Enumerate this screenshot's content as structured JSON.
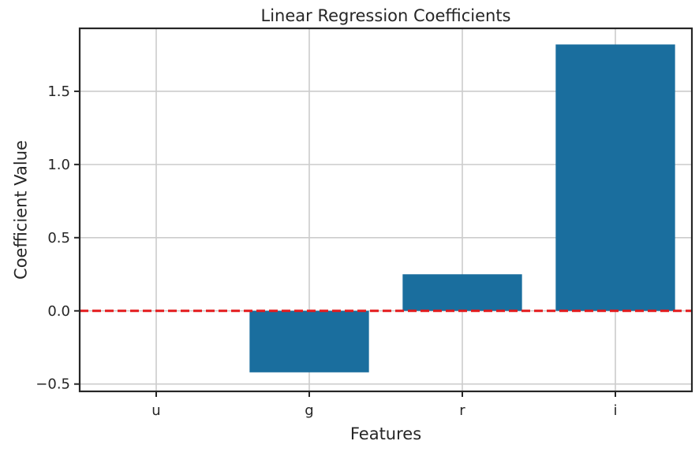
{
  "chart_data": {
    "type": "bar",
    "title": "Linear Regression Coefficients",
    "xlabel": "Features",
    "ylabel": "Coefficient Value",
    "categories": [
      "u",
      "g",
      "r",
      "i"
    ],
    "values": [
      0.0,
      -0.42,
      0.25,
      1.82
    ],
    "ylim": [
      -0.55,
      1.93
    ],
    "yticks": [
      -0.5,
      0.0,
      0.5,
      1.0,
      1.5
    ],
    "ytick_labels": [
      "−0.5",
      "0.0",
      "0.5",
      "1.0",
      "1.5"
    ],
    "grid": true,
    "bar_color": "#1a6e9e",
    "reference_line": {
      "y": 0.0,
      "color": "#e31a1c",
      "style": "dashed"
    }
  }
}
